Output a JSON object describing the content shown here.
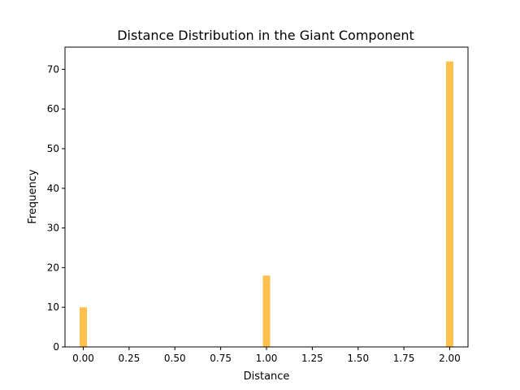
{
  "chart_data": {
    "type": "bar",
    "title": "Distance Distribution in the Giant Component",
    "xlabel": "Distance",
    "ylabel": "Frequency",
    "x": [
      0,
      1,
      2
    ],
    "values": [
      10,
      18,
      72
    ],
    "xlim": [
      -0.1,
      2.1
    ],
    "ylim": [
      0,
      75.6
    ],
    "xticks": [
      0.0,
      0.25,
      0.5,
      0.75,
      1.0,
      1.25,
      1.5,
      1.75,
      2.0
    ],
    "xtick_labels": [
      "0.00",
      "0.25",
      "0.50",
      "0.75",
      "1.00",
      "1.25",
      "1.50",
      "1.75",
      "2.00"
    ],
    "yticks": [
      0,
      10,
      20,
      30,
      40,
      50,
      60,
      70
    ],
    "ytick_labels": [
      "0",
      "10",
      "20",
      "30",
      "40",
      "50",
      "60",
      "70"
    ],
    "bar_color": "#FFB93C",
    "grid": false
  }
}
